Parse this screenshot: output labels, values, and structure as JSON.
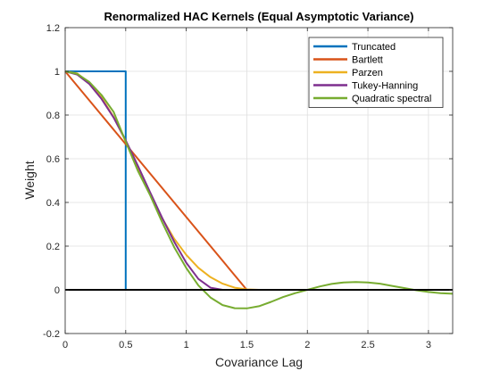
{
  "chart_data": {
    "type": "line",
    "title": "Renormalized  HAC  Kernels  (Equal  Asymptotic  Variance)",
    "xlabel": "Covariance Lag",
    "ylabel": "Weight",
    "xlim": [
      0,
      3.2
    ],
    "ylim": [
      -0.2,
      1.2
    ],
    "xticks": [
      0,
      0.5,
      1,
      1.5,
      2,
      2.5,
      3
    ],
    "xtick_labels": [
      "0",
      "0.5",
      "1",
      "1.5",
      "2",
      "2.5",
      "3"
    ],
    "yticks": [
      -0.2,
      0,
      0.2,
      0.4,
      0.6,
      0.8,
      1,
      1.2
    ],
    "ytick_labels": [
      "-0.2",
      "0",
      "0.2",
      "0.4",
      "0.6",
      "0.8",
      "1",
      "1.2"
    ],
    "grid": true,
    "legend_position": "top-right",
    "zero_line": true,
    "series": [
      {
        "name": "Truncated",
        "color": "#0072BD",
        "x": [
          0,
          0.5,
          0.5,
          0.5
        ],
        "y": [
          1,
          1,
          0,
          0
        ]
      },
      {
        "name": "Bartlett",
        "color": "#D95319",
        "x": [
          0,
          1.5,
          1.5
        ],
        "y": [
          1,
          0,
          0
        ]
      },
      {
        "name": "Parzen",
        "color": "#EDB120",
        "x": [
          0,
          0.1,
          0.2,
          0.3,
          0.4,
          0.5,
          0.6,
          0.7,
          0.75,
          0.8,
          0.9,
          1.0,
          1.1,
          1.2,
          1.3,
          1.4,
          1.5,
          1.6,
          1.7,
          1.75
        ],
        "y": [
          1,
          0.99,
          0.947,
          0.88,
          0.791,
          0.681,
          0.561,
          0.44,
          0.383,
          0.328,
          0.234,
          0.16,
          0.101,
          0.058,
          0.028,
          0.01,
          0.002,
          0.0,
          0.0,
          0.0
        ]
      },
      {
        "name": "Tukey-Hanning",
        "color": "#7E2F8E",
        "x": [
          0,
          0.1,
          0.2,
          0.3,
          0.4,
          0.5,
          0.6,
          0.7,
          0.8,
          0.9,
          1.0,
          1.1,
          1.2,
          1.3
        ],
        "y": [
          1,
          0.985,
          0.942,
          0.874,
          0.788,
          0.684,
          0.568,
          0.448,
          0.33,
          0.22,
          0.124,
          0.05,
          0.01,
          0
        ]
      },
      {
        "name": "Quadratic spectral",
        "color": "#77AC30",
        "x": [
          0,
          0.1,
          0.2,
          0.3,
          0.4,
          0.5,
          0.6,
          0.7,
          0.8,
          0.9,
          1.0,
          1.1,
          1.2,
          1.3,
          1.4,
          1.5,
          1.6,
          1.7,
          1.8,
          1.9,
          2.0,
          2.1,
          2.2,
          2.3,
          2.4,
          2.5,
          2.6,
          2.7,
          2.8,
          2.9,
          3.0,
          3.1,
          3.2
        ],
        "y": [
          1,
          0.988,
          0.951,
          0.892,
          0.814,
          0.678,
          0.545,
          0.435,
          0.31,
          0.195,
          0.1,
          0.02,
          -0.035,
          -0.07,
          -0.084,
          -0.085,
          -0.075,
          -0.055,
          -0.033,
          -0.015,
          0.0,
          0.015,
          0.027,
          0.034,
          0.036,
          0.034,
          0.028,
          0.018,
          0.008,
          -0.002,
          -0.01,
          -0.015,
          -0.018
        ]
      }
    ]
  }
}
